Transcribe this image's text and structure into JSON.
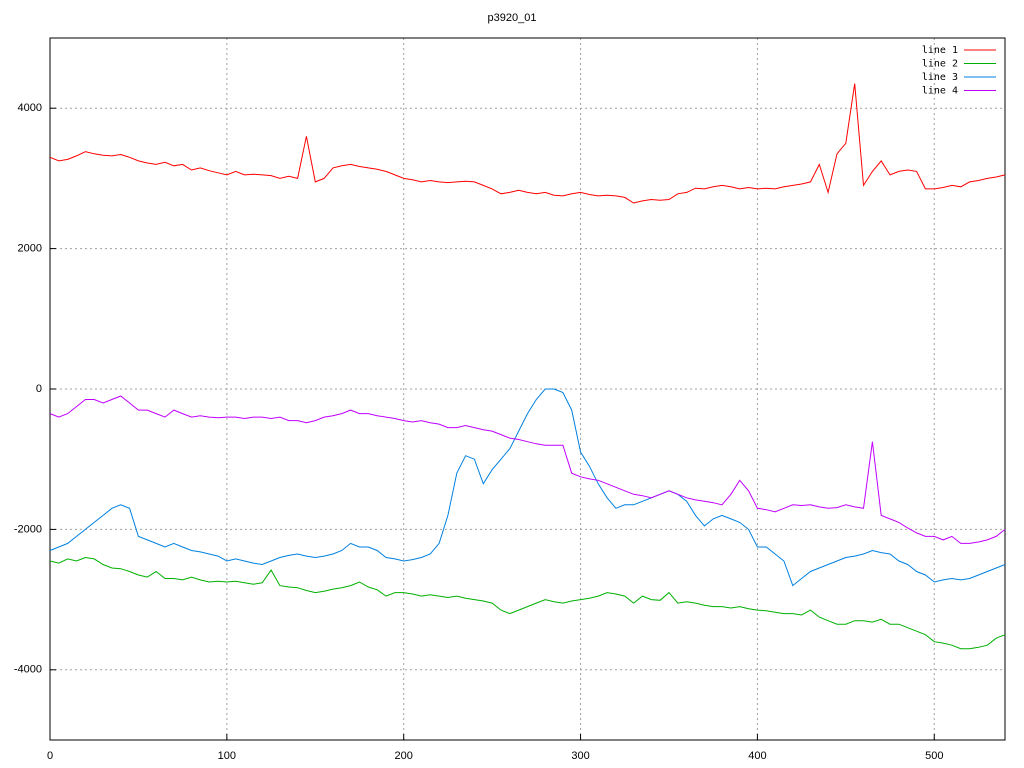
{
  "chart_data": {
    "type": "line",
    "title": "p3920_01",
    "x": [
      0,
      5,
      10,
      15,
      20,
      25,
      30,
      35,
      40,
      45,
      50,
      55,
      60,
      65,
      70,
      75,
      80,
      85,
      90,
      95,
      100,
      105,
      110,
      115,
      120,
      125,
      130,
      135,
      140,
      145,
      150,
      155,
      160,
      165,
      170,
      175,
      180,
      185,
      190,
      195,
      200,
      205,
      210,
      215,
      220,
      225,
      230,
      235,
      240,
      245,
      250,
      255,
      260,
      265,
      270,
      275,
      280,
      285,
      290,
      295,
      300,
      305,
      310,
      315,
      320,
      325,
      330,
      335,
      340,
      345,
      350,
      355,
      360,
      365,
      370,
      375,
      380,
      385,
      390,
      395,
      400,
      405,
      410,
      415,
      420,
      425,
      430,
      435,
      440,
      445,
      450,
      455,
      460,
      465,
      470,
      475,
      480,
      485,
      490,
      495,
      500,
      505,
      510,
      515,
      520,
      525,
      530,
      535,
      540
    ],
    "series": [
      {
        "name": "line 1",
        "color": "#ff0000",
        "values": [
          3300,
          3250,
          3270,
          3320,
          3380,
          3350,
          3330,
          3320,
          3340,
          3300,
          3250,
          3220,
          3200,
          3230,
          3180,
          3200,
          3120,
          3150,
          3110,
          3080,
          3050,
          3100,
          3050,
          3060,
          3050,
          3040,
          3000,
          3030,
          3000,
          3600,
          2950,
          3000,
          3150,
          3180,
          3200,
          3170,
          3150,
          3130,
          3100,
          3050,
          3000,
          2980,
          2950,
          2970,
          2950,
          2940,
          2950,
          2960,
          2950,
          2900,
          2850,
          2780,
          2800,
          2830,
          2800,
          2780,
          2800,
          2760,
          2750,
          2780,
          2800,
          2770,
          2750,
          2760,
          2750,
          2730,
          2650,
          2680,
          2700,
          2690,
          2700,
          2780,
          2800,
          2860,
          2850,
          2880,
          2900,
          2880,
          2850,
          2870,
          2850,
          2860,
          2850,
          2880,
          2900,
          2920,
          2950,
          3200,
          2800,
          3350,
          3500,
          4350,
          2900,
          3100,
          3250,
          3050,
          3100,
          3120,
          3100,
          2850,
          2850,
          2870,
          2900,
          2880,
          2950,
          2970,
          3000,
          3020,
          3050
        ]
      },
      {
        "name": "line 2",
        "color": "#00b000",
        "values": [
          -2450,
          -2480,
          -2420,
          -2450,
          -2400,
          -2420,
          -2500,
          -2550,
          -2560,
          -2600,
          -2650,
          -2680,
          -2600,
          -2700,
          -2700,
          -2720,
          -2680,
          -2720,
          -2750,
          -2740,
          -2750,
          -2740,
          -2760,
          -2780,
          -2760,
          -2580,
          -2800,
          -2820,
          -2830,
          -2870,
          -2900,
          -2880,
          -2850,
          -2830,
          -2800,
          -2750,
          -2820,
          -2860,
          -2950,
          -2900,
          -2900,
          -2920,
          -2950,
          -2930,
          -2950,
          -2970,
          -2950,
          -2980,
          -3000,
          -3020,
          -3050,
          -3150,
          -3200,
          -3150,
          -3100,
          -3050,
          -3000,
          -3030,
          -3050,
          -3020,
          -3000,
          -2980,
          -2950,
          -2900,
          -2920,
          -2950,
          -3050,
          -2950,
          -3000,
          -3010,
          -2900,
          -3050,
          -3030,
          -3050,
          -3080,
          -3100,
          -3100,
          -3120,
          -3100,
          -3130,
          -3150,
          -3160,
          -3180,
          -3200,
          -3200,
          -3220,
          -3150,
          -3250,
          -3300,
          -3350,
          -3350,
          -3300,
          -3300,
          -3320,
          -3280,
          -3350,
          -3350,
          -3400,
          -3450,
          -3500,
          -3600,
          -3620,
          -3650,
          -3700,
          -3700,
          -3680,
          -3650,
          -3550,
          -3500
        ]
      },
      {
        "name": "line 3",
        "color": "#0080e0",
        "values": [
          -2300,
          -2250,
          -2200,
          -2100,
          -2000,
          -1900,
          -1800,
          -1700,
          -1650,
          -1700,
          -2100,
          -2150,
          -2200,
          -2250,
          -2200,
          -2250,
          -2300,
          -2320,
          -2350,
          -2380,
          -2450,
          -2420,
          -2450,
          -2480,
          -2500,
          -2450,
          -2400,
          -2370,
          -2350,
          -2380,
          -2400,
          -2380,
          -2350,
          -2300,
          -2200,
          -2250,
          -2250,
          -2300,
          -2400,
          -2420,
          -2450,
          -2430,
          -2400,
          -2350,
          -2200,
          -1800,
          -1200,
          -950,
          -1000,
          -1350,
          -1150,
          -1000,
          -850,
          -600,
          -350,
          -150,
          0,
          0,
          -50,
          -300,
          -900,
          -1100,
          -1350,
          -1550,
          -1700,
          -1650,
          -1650,
          -1600,
          -1550,
          -1500,
          -1450,
          -1500,
          -1600,
          -1800,
          -1950,
          -1850,
          -1800,
          -1850,
          -1900,
          -2000,
          -2250,
          -2250,
          -2350,
          -2450,
          -2800,
          -2700,
          -2600,
          -2550,
          -2500,
          -2450,
          -2400,
          -2380,
          -2350,
          -2300,
          -2330,
          -2350,
          -2450,
          -2500,
          -2600,
          -2650,
          -2750,
          -2720,
          -2700,
          -2720,
          -2700,
          -2650,
          -2600,
          -2550,
          -2500
        ]
      },
      {
        "name": "line 4",
        "color": "#c000ff",
        "values": [
          -350,
          -400,
          -350,
          -250,
          -150,
          -150,
          -200,
          -150,
          -100,
          -200,
          -300,
          -300,
          -350,
          -400,
          -300,
          -350,
          -400,
          -380,
          -400,
          -410,
          -400,
          -400,
          -420,
          -400,
          -400,
          -420,
          -400,
          -450,
          -450,
          -480,
          -450,
          -400,
          -380,
          -350,
          -300,
          -350,
          -350,
          -380,
          -400,
          -420,
          -450,
          -470,
          -450,
          -480,
          -500,
          -550,
          -550,
          -520,
          -550,
          -580,
          -600,
          -650,
          -700,
          -720,
          -750,
          -780,
          -800,
          -800,
          -800,
          -1200,
          -1250,
          -1280,
          -1300,
          -1350,
          -1400,
          -1450,
          -1500,
          -1520,
          -1550,
          -1500,
          -1450,
          -1500,
          -1550,
          -1580,
          -1600,
          -1620,
          -1650,
          -1500,
          -1300,
          -1450,
          -1700,
          -1720,
          -1750,
          -1700,
          -1650,
          -1660,
          -1650,
          -1680,
          -1700,
          -1690,
          -1650,
          -1680,
          -1700,
          -750,
          -1800,
          -1850,
          -1900,
          -1980,
          -2050,
          -2100,
          -2100,
          -2150,
          -2100,
          -2200,
          -2200,
          -2180,
          -2150,
          -2100,
          -2000
        ]
      }
    ],
    "xlim": [
      0,
      540
    ],
    "xticks": [
      0,
      100,
      200,
      300,
      400,
      500
    ],
    "ylim": [
      -5000,
      5000
    ],
    "yticks": [
      -4000,
      -2000,
      0,
      2000,
      4000
    ],
    "grid": true,
    "legend": "upper right"
  }
}
